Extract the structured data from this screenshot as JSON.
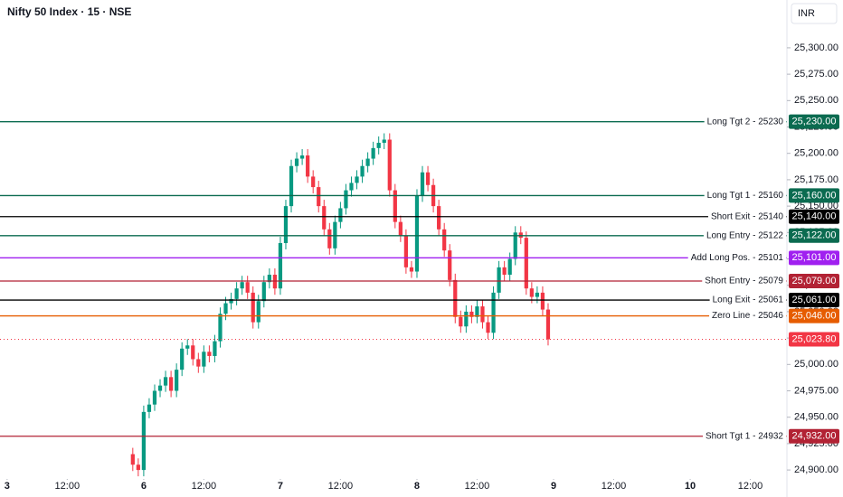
{
  "chart_data": {
    "type": "candlestick",
    "title": "Nifty 50 Index · 15 · NSE",
    "currency": "INR",
    "up_color": "#089981",
    "down_color": "#f23645",
    "xlim": [
      -26.3,
      117.7
    ],
    "xticks": [
      {
        "value": -25,
        "label": "3"
      },
      {
        "value": -14,
        "label": "12:00"
      },
      {
        "value": 0,
        "label": "6"
      },
      {
        "value": 11,
        "label": "12:00"
      },
      {
        "value": 25,
        "label": "7"
      },
      {
        "value": 36,
        "label": "12:00"
      },
      {
        "value": 50,
        "label": "8"
      },
      {
        "value": 61,
        "label": "12:00"
      },
      {
        "value": 75,
        "label": "9"
      },
      {
        "value": 86,
        "label": "12:00"
      },
      {
        "value": 100,
        "label": "10"
      },
      {
        "value": 111,
        "label": "12:00"
      }
    ],
    "ylim": [
      24874.4,
      25345.3
    ],
    "yticks": [
      {
        "value": 24900,
        "label": "24,900.00"
      },
      {
        "value": 24925,
        "label": "24,925.00"
      },
      {
        "value": 24950,
        "label": "24,950.00"
      },
      {
        "value": 24975,
        "label": "24,975.00"
      },
      {
        "value": 25000,
        "label": "25,000.00"
      },
      {
        "value": 25025,
        "label": "25,025.00"
      },
      {
        "value": 25050,
        "label": "25,050.00"
      },
      {
        "value": 25075,
        "label": "25,075.00"
      },
      {
        "value": 25100,
        "label": "25,100.00"
      },
      {
        "value": 25125,
        "label": "25,125.00"
      },
      {
        "value": 25150,
        "label": "25,150.00"
      },
      {
        "value": 25175,
        "label": "25,175.00"
      },
      {
        "value": 25200,
        "label": "25,200.00"
      },
      {
        "value": 25225,
        "label": "25,225.00"
      },
      {
        "value": 25250,
        "label": "25,250.00"
      },
      {
        "value": 25275,
        "label": "25,275.00"
      },
      {
        "value": 25300,
        "label": "25,300.00"
      }
    ],
    "x": [
      -2,
      -1,
      0,
      1,
      2,
      3,
      4,
      5,
      6,
      7,
      8,
      9,
      10,
      11,
      12,
      13,
      14,
      15,
      16,
      17,
      18,
      19,
      20,
      21,
      22,
      23,
      24,
      25,
      26,
      27,
      28,
      29,
      30,
      31,
      32,
      33,
      34,
      35,
      36,
      37,
      38,
      39,
      40,
      41,
      42,
      43,
      44,
      45,
      46,
      47,
      48,
      49,
      50,
      51,
      52,
      53,
      54,
      55,
      56,
      57,
      58,
      59,
      60,
      61,
      62,
      63,
      64,
      65,
      66,
      67,
      68,
      69,
      70,
      71,
      72,
      73,
      74
    ],
    "open": [
      24915,
      24905,
      24900,
      24955,
      24962,
      24975,
      24980,
      24988,
      24975,
      24995,
      25015,
      25018,
      25005,
      24998,
      25012,
      25008,
      25022,
      25048,
      25058,
      25062,
      25072,
      25078,
      25068,
      25040,
      25060,
      25078,
      25085,
      25072,
      25115,
      25150,
      25188,
      25195,
      25198,
      25178,
      25168,
      25150,
      25128,
      25110,
      25135,
      25148,
      25165,
      25172,
      25178,
      25188,
      25195,
      25205,
      25210,
      25213,
      25165,
      25135,
      25122,
      25092,
      25088,
      25160,
      25182,
      25170,
      25150,
      25128,
      25108,
      25080,
      25045,
      25036,
      25050,
      25045,
      25055,
      25040,
      25030,
      25068,
      25092,
      25085,
      25100,
      25125,
      25120,
      25072,
      25064,
      25068,
      25052
    ],
    "high": [
      24921,
      24911,
      24961,
      24968,
      24981,
      24986,
      24994,
      24994,
      25001,
      25021,
      25024,
      25024,
      25011,
      25018,
      25018,
      25028,
      25054,
      25064,
      25068,
      25078,
      25084,
      25084,
      25074,
      25066,
      25084,
      25091,
      25091,
      25121,
      25156,
      25194,
      25201,
      25204,
      25204,
      25184,
      25174,
      25156,
      25134,
      25141,
      25154,
      25171,
      25178,
      25184,
      25194,
      25201,
      25211,
      25216,
      25219,
      25219,
      25171,
      25141,
      25128,
      25098,
      25166,
      25188,
      25188,
      25176,
      25156,
      25134,
      25114,
      25086,
      25051,
      25056,
      25056,
      25061,
      25061,
      25046,
      25074,
      25098,
      25098,
      25106,
      25131,
      25131,
      25126,
      25078,
      25074,
      25074,
      25058
    ],
    "low": [
      24899,
      24894,
      24894,
      24949,
      24956,
      24969,
      24974,
      24969,
      24969,
      24989,
      25009,
      24999,
      24992,
      24992,
      25002,
      25002,
      25016,
      25042,
      25052,
      25056,
      25066,
      25062,
      25034,
      25034,
      25054,
      25072,
      25066,
      25066,
      25109,
      25144,
      25182,
      25189,
      25172,
      25162,
      25144,
      25122,
      25104,
      25104,
      25129,
      25142,
      25159,
      25166,
      25172,
      25182,
      25189,
      25199,
      25204,
      25159,
      25129,
      25116,
      25086,
      25082,
      25082,
      25154,
      25164,
      25144,
      25122,
      25102,
      25074,
      25039,
      25030,
      25030,
      25039,
      25039,
      25034,
      25024,
      25024,
      25062,
      25079,
      25079,
      25094,
      25114,
      25066,
      25058,
      25058,
      25046,
      25018
    ],
    "close": [
      24905,
      24900,
      24955,
      24962,
      24975,
      24980,
      24988,
      24975,
      24995,
      25015,
      25018,
      25005,
      24998,
      25012,
      25008,
      25022,
      25048,
      25058,
      25062,
      25072,
      25078,
      25068,
      25040,
      25060,
      25078,
      25085,
      25072,
      25115,
      25150,
      25188,
      25195,
      25198,
      25178,
      25168,
      25150,
      25128,
      25110,
      25135,
      25148,
      25165,
      25172,
      25178,
      25188,
      25195,
      25205,
      25210,
      25213,
      25165,
      25135,
      25122,
      25092,
      25088,
      25160,
      25182,
      25170,
      25150,
      25128,
      25108,
      25080,
      25045,
      25036,
      25050,
      25045,
      25055,
      25040,
      25030,
      25068,
      25092,
      25085,
      25100,
      25125,
      25120,
      25072,
      25064,
      25068,
      25052,
      25023.8
    ],
    "levels": [
      {
        "label": "Long Tgt 2 - 25230",
        "value": 25230,
        "tag": "25,230.00",
        "color": "#0b6b50"
      },
      {
        "label": "Long Tgt 1 - 25160",
        "value": 25160,
        "tag": "25,160.00",
        "color": "#0b6b50"
      },
      {
        "label": "Short Exit - 25140",
        "value": 25140,
        "tag": "25,140.00",
        "color": "#000000"
      },
      {
        "label": "Long Entry - 25122",
        "value": 25122,
        "tag": "25,122.00",
        "color": "#0b6b50"
      },
      {
        "label": "Add Long Pos. - 25101",
        "value": 25101,
        "tag": "25,101.00",
        "color": "#a020f0"
      },
      {
        "label": "Short Entry - 25079",
        "value": 25079,
        "tag": "25,079.00",
        "color": "#b22234"
      },
      {
        "label": "Long Exit - 25061",
        "value": 25061,
        "tag": "25,061.00",
        "color": "#000000"
      },
      {
        "label": "Zero Line - 25046",
        "value": 25046,
        "tag": "25,046.00",
        "color": "#e65c00"
      },
      {
        "label": "Short Tgt 1 - 24932",
        "value": 24932,
        "tag": "24,932.00",
        "color": "#b22234"
      }
    ],
    "last_price": {
      "value": 25023.8,
      "tag": "25,023.80",
      "color": "#f23645"
    }
  }
}
